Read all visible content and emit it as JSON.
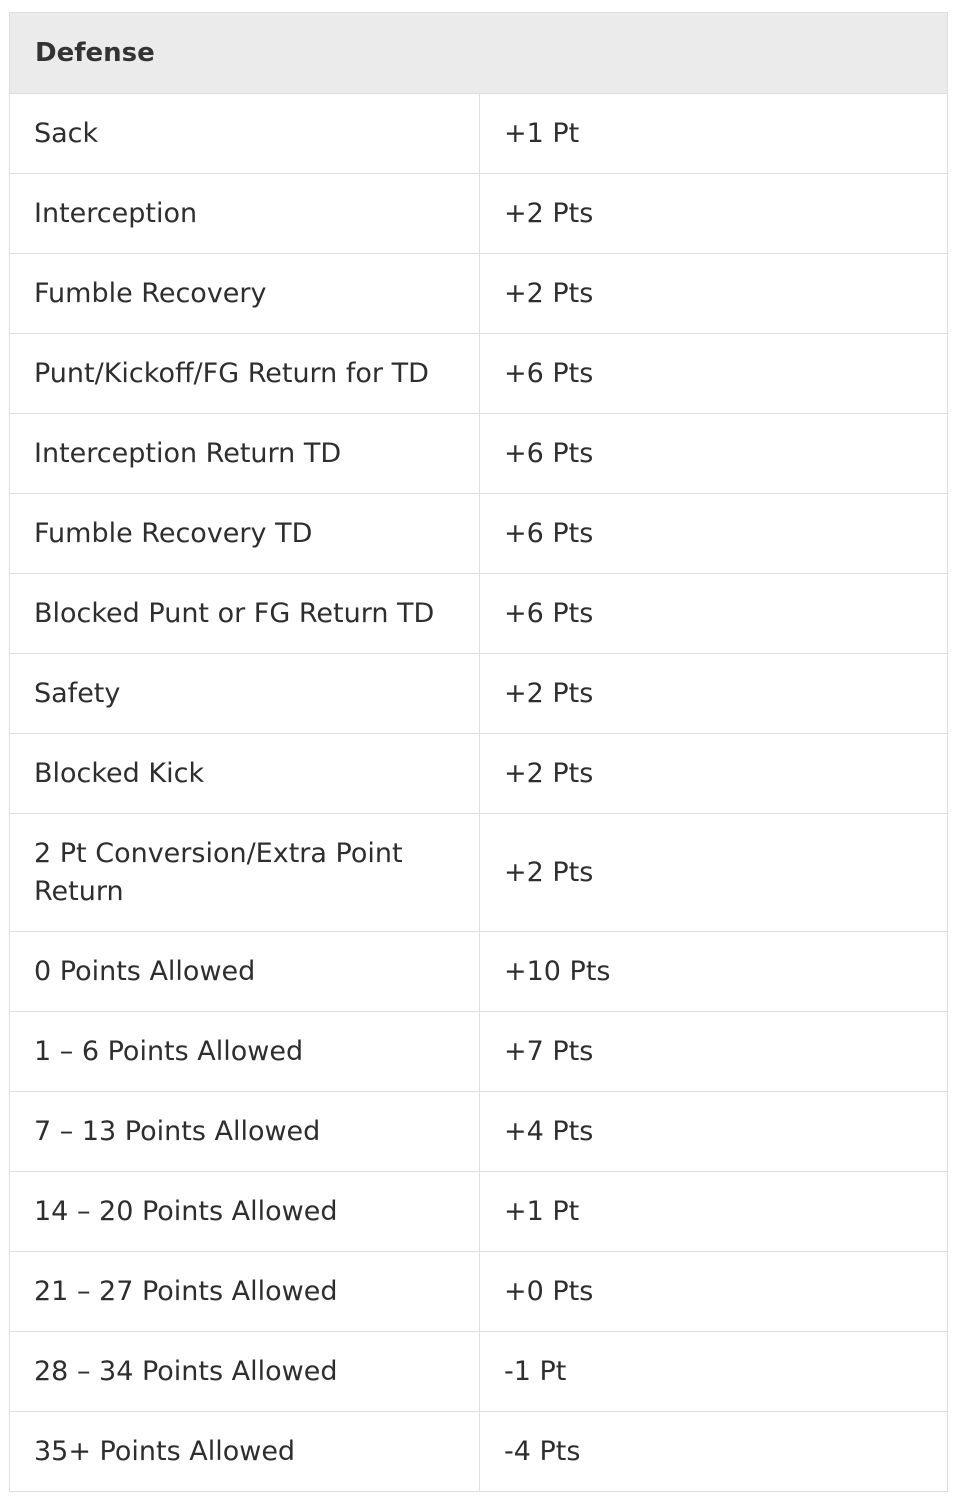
{
  "table": {
    "header": "Defense",
    "rows": [
      {
        "stat": "Sack",
        "points": "+1 Pt"
      },
      {
        "stat": "Interception",
        "points": "+2 Pts"
      },
      {
        "stat": "Fumble Recovery",
        "points": "+2 Pts"
      },
      {
        "stat": "Punt/Kickoff/FG Return for TD",
        "points": "+6 Pts"
      },
      {
        "stat": "Interception Return TD",
        "points": "+6 Pts"
      },
      {
        "stat": "Fumble Recovery TD",
        "points": "+6 Pts"
      },
      {
        "stat": "Blocked Punt or FG Return TD",
        "points": "+6 Pts"
      },
      {
        "stat": "Safety",
        "points": "+2 Pts"
      },
      {
        "stat": "Blocked Kick",
        "points": "+2 Pts"
      },
      {
        "stat": "2 Pt Conversion/Extra Point Return",
        "points": "+2 Pts"
      },
      {
        "stat": "0 Points Allowed",
        "points": "+10 Pts"
      },
      {
        "stat": "1 – 6 Points Allowed",
        "points": "+7 Pts"
      },
      {
        "stat": "7 – 13 Points Allowed",
        "points": "+4 Pts"
      },
      {
        "stat": "14 – 20 Points Allowed",
        "points": "+1 Pt"
      },
      {
        "stat": "21 – 27 Points Allowed",
        "points": "+0 Pts"
      },
      {
        "stat": "28 – 34 Points Allowed",
        "points": "-1 Pt"
      },
      {
        "stat": "35+ Points Allowed",
        "points": "-4 Pts"
      }
    ]
  }
}
